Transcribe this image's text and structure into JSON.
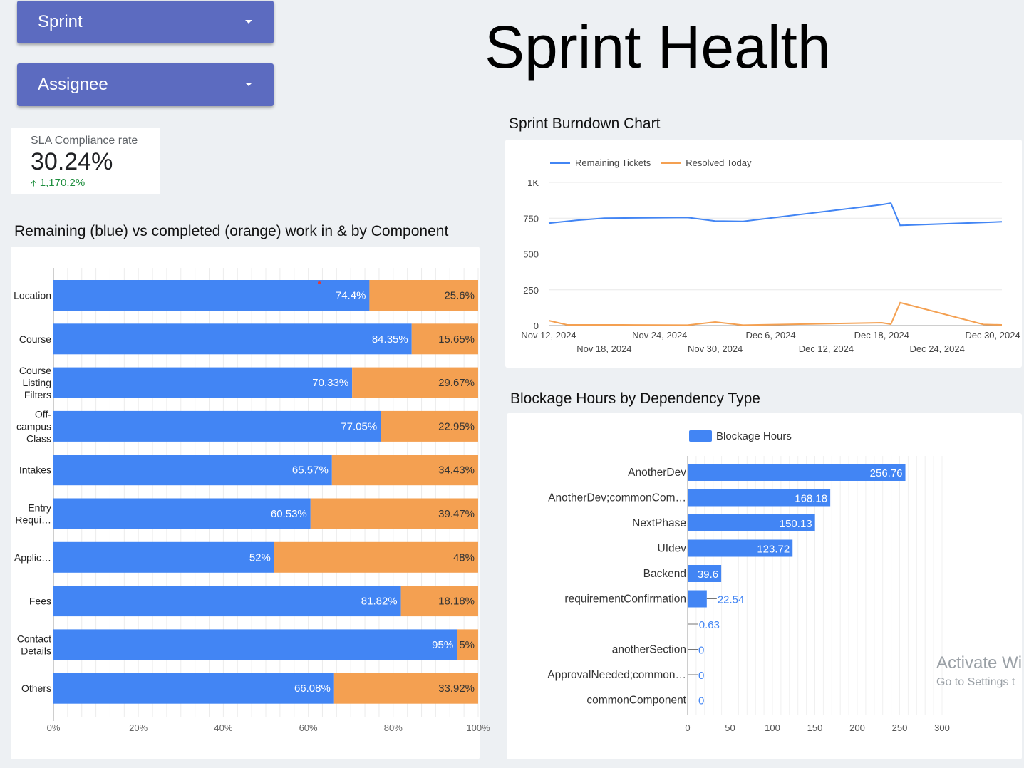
{
  "filters": {
    "sprint_label": "Sprint",
    "assignee_label": "Assignee"
  },
  "page": {
    "title": "Sprint Health"
  },
  "sla": {
    "label": "SLA Compliance rate",
    "value": "30.24%",
    "delta": "1,170.2%",
    "delta_icon": "arrow-up-icon",
    "delta_color": "#1e8e3e"
  },
  "component_chart": {
    "title": "Remaining (blue) vs completed (orange) work in & by Component",
    "chart_data": {
      "type": "bar",
      "orientation": "horizontal",
      "stacked": "100%",
      "categories": [
        [
          "Location"
        ],
        [
          "Course"
        ],
        [
          "Course",
          "Listing",
          "Filters"
        ],
        [
          "Off-",
          "campus",
          "Class"
        ],
        [
          "Intakes"
        ],
        [
          "Entry",
          "Requi…"
        ],
        [
          "Applic…"
        ],
        [
          "Fees"
        ],
        [
          "Contact",
          "Details"
        ],
        [
          "Others"
        ]
      ],
      "series": [
        {
          "color": "#4285f4",
          "values": [
            74.4,
            84.35,
            70.33,
            77.05,
            65.57,
            60.53,
            52,
            81.82,
            95,
            66.08
          ],
          "labels": [
            "74.4%",
            "84.35%",
            "70.33%",
            "77.05%",
            "65.57%",
            "60.53%",
            "52%",
            "81.82%",
            "95%",
            "66.08%"
          ]
        },
        {
          "color": "#f4a051",
          "values": [
            25.6,
            15.65,
            29.67,
            22.95,
            34.43,
            39.47,
            48,
            18.18,
            5,
            33.92
          ],
          "labels": [
            "25.6%",
            "15.65%",
            "29.67%",
            "22.95%",
            "34.43%",
            "39.47%",
            "48%",
            "18.18%",
            "5%",
            "33.92%"
          ]
        }
      ],
      "x_ticks": [
        "0%",
        "20%",
        "40%",
        "60%",
        "80%",
        "100%"
      ],
      "xlim": [
        0,
        100
      ],
      "grid": true
    }
  },
  "burndown_chart": {
    "title": "Sprint Burndown Chart",
    "chart_data": {
      "type": "line",
      "series": [
        {
          "name": "Remaining Tickets",
          "color": "#4285f4",
          "points": [
            [
              "2024-11-12",
              715
            ],
            [
              "2024-11-15",
              735
            ],
            [
              "2024-11-18",
              750
            ],
            [
              "2024-11-27",
              755
            ],
            [
              "2024-11-30",
              730
            ],
            [
              "2024-12-03",
              728
            ],
            [
              "2024-12-18",
              845
            ],
            [
              "2024-12-19",
              855
            ],
            [
              "2024-12-20",
              700
            ],
            [
              "2024-12-31",
              725
            ]
          ]
        },
        {
          "name": "Resolved Today",
          "color": "#f4a051",
          "points": [
            [
              "2024-11-12",
              35
            ],
            [
              "2024-11-14",
              5
            ],
            [
              "2024-11-20",
              5
            ],
            [
              "2024-11-27",
              3
            ],
            [
              "2024-11-30",
              25
            ],
            [
              "2024-12-03",
              3
            ],
            [
              "2024-12-18",
              20
            ],
            [
              "2024-12-19",
              10
            ],
            [
              "2024-12-20",
              160
            ],
            [
              "2024-12-29",
              8
            ],
            [
              "2024-12-31",
              5
            ]
          ]
        }
      ],
      "y_ticks": [
        "1K",
        "750",
        "500",
        "250",
        "0"
      ],
      "ylim": [
        0,
        1000
      ],
      "x_ticks_upper": [
        "Nov 12, 2024",
        "Nov 24, 2024",
        "Dec 6, 2024",
        "Dec 18, 2024",
        "Dec 30, 2024"
      ],
      "x_ticks_lower": [
        "Nov 18, 2024",
        "Nov 30, 2024",
        "Dec 12, 2024",
        "Dec 24, 2024"
      ],
      "legend": "top-left",
      "grid": true
    }
  },
  "blockage_chart": {
    "title": "Blockage Hours by Dependency Type",
    "chart_data": {
      "type": "bar",
      "orientation": "horizontal",
      "legend": "top",
      "series": [
        {
          "name": "Blockage Hours",
          "color": "#4285f4"
        }
      ],
      "categories": [
        "AnotherDev",
        "AnotherDev;commonCom…",
        "NextPhase",
        "UIdev",
        "Backend",
        "requirementConfirmation",
        "",
        "anotherSection",
        "ApprovalNeeded;common…",
        "commonComponent"
      ],
      "values": [
        256.76,
        168.18,
        150.13,
        123.72,
        39.6,
        22.54,
        0.63,
        0,
        0,
        0
      ],
      "labels": [
        "256.76",
        "168.18",
        "150.13",
        "123.72",
        "39.6",
        "22.54",
        "0.63",
        "0",
        "0",
        "0"
      ],
      "x_ticks": [
        "0",
        "50",
        "100",
        "150",
        "200",
        "250",
        "300"
      ],
      "xlim": [
        0,
        300
      ],
      "grid": true
    }
  },
  "watermark": {
    "line1": "Activate Wi",
    "line2": "Go to Settings t"
  }
}
